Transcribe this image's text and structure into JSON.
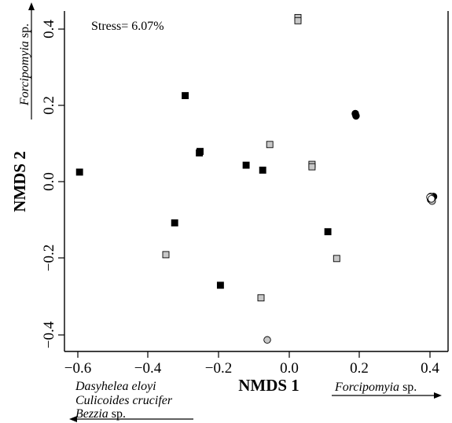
{
  "chart_data": {
    "type": "scatter",
    "title": "",
    "xlabel": "NMDS 1",
    "ylabel": "NMDS 2",
    "xlim": [
      -0.645,
      0.435
    ],
    "ylim": [
      -0.44,
      0.465
    ],
    "xticks": [
      -0.6,
      -0.4,
      -0.2,
      0.0,
      0.2,
      0.4
    ],
    "yticks": [
      -0.4,
      -0.2,
      0.0,
      0.2,
      0.4
    ],
    "xtick_labels": [
      "−0.6",
      "−0.4",
      "−0.2",
      "0.0",
      "0.2",
      "0.4"
    ],
    "ytick_labels": [
      "−0.4",
      "−0.2",
      "0.0",
      "0.2",
      "0.4"
    ],
    "grid": false,
    "annotations": {
      "stress": "Stress= 6.07%"
    },
    "biplot_labels": {
      "x_positive": {
        "species": "Forcipomyia",
        "suffix": " sp."
      },
      "x_negative": [
        {
          "species": "Dasyhelea eloyi",
          "suffix": ""
        },
        {
          "species": "Culicoides crucifer",
          "suffix": ""
        },
        {
          "species": "Bezzia",
          "suffix": " sp."
        }
      ],
      "y_positive": {
        "species": "Forcipomyia",
        "suffix": " sp."
      }
    },
    "series": [
      {
        "marker": "square",
        "fill": "#000000",
        "points": [
          [
            -0.595,
            0.026
          ],
          [
            -0.295,
            0.226
          ],
          [
            -0.253,
            0.08
          ],
          [
            -0.255,
            0.076
          ],
          [
            -0.325,
            -0.107
          ],
          [
            -0.195,
            -0.27
          ],
          [
            -0.122,
            0.044
          ],
          [
            -0.075,
            0.031
          ],
          [
            0.11,
            -0.13
          ]
        ]
      },
      {
        "marker": "square",
        "fill": "#c8c8c8",
        "points": [
          [
            0.025,
            0.43
          ],
          [
            0.025,
            0.422
          ],
          [
            -0.055,
            0.098
          ],
          [
            0.065,
            0.046
          ],
          [
            0.065,
            0.04
          ],
          [
            -0.35,
            -0.19
          ],
          [
            0.135,
            -0.2
          ],
          [
            -0.08,
            -0.303
          ]
        ]
      },
      {
        "marker": "circle",
        "fill": "#000000",
        "points": [
          [
            0.188,
            0.179
          ],
          [
            0.19,
            0.173
          ],
          [
            0.41,
            -0.038
          ],
          [
            0.402,
            -0.046
          ]
        ]
      },
      {
        "marker": "circle",
        "fill": "#c8c8c8",
        "points": [
          [
            0.402,
            -0.038
          ],
          [
            0.406,
            -0.05
          ],
          [
            -0.062,
            -0.413
          ]
        ]
      },
      {
        "marker": "circle",
        "fill": "#ffffff",
        "points": [
          [
            0.4,
            -0.04
          ],
          [
            0.404,
            -0.044
          ]
        ]
      }
    ]
  }
}
